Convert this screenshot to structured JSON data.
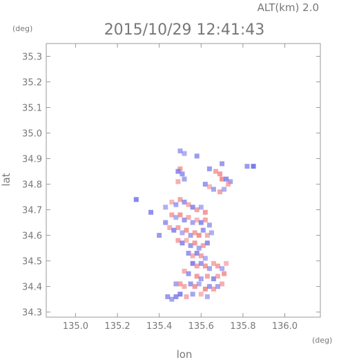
{
  "header": {
    "alt_label": "ALT(km) 2.0",
    "timestamp": "2015/10/29 12:41:43",
    "y_unit": "(deg)",
    "x_unit": "(deg)"
  },
  "chart_data": {
    "type": "heatmap",
    "xlabel": "lon",
    "ylabel": "lat",
    "xlim": [
      134.86,
      136.17
    ],
    "ylim": [
      34.28,
      35.35
    ],
    "x_ticks": [
      "135.0",
      "135.2",
      "135.4",
      "135.6",
      "135.8",
      "136.0"
    ],
    "y_ticks": [
      "34.3",
      "34.4",
      "34.5",
      "34.6",
      "34.7",
      "34.8",
      "34.9",
      "35.0",
      "35.1",
      "35.2",
      "35.3"
    ],
    "grid": false,
    "colors": {
      "positive": "#f08080",
      "negative": "#7070e8",
      "frame": "#999999"
    },
    "cells": [
      {
        "lon": 135.5,
        "lat": 34.93,
        "v": -0.4
      },
      {
        "lon": 135.52,
        "lat": 34.92,
        "v": -0.3
      },
      {
        "lon": 135.58,
        "lat": 34.91,
        "v": -0.5
      },
      {
        "lon": 135.5,
        "lat": 34.86,
        "v": 0.5
      },
      {
        "lon": 135.49,
        "lat": 34.85,
        "v": -0.6
      },
      {
        "lon": 135.51,
        "lat": 34.84,
        "v": -0.5
      },
      {
        "lon": 135.52,
        "lat": 34.82,
        "v": -0.4
      },
      {
        "lon": 135.49,
        "lat": 34.81,
        "v": 0.4
      },
      {
        "lon": 135.64,
        "lat": 34.86,
        "v": -0.5
      },
      {
        "lon": 135.67,
        "lat": 34.85,
        "v": 0.5
      },
      {
        "lon": 135.69,
        "lat": 34.84,
        "v": 0.6
      },
      {
        "lon": 135.7,
        "lat": 34.82,
        "v": 0.7
      },
      {
        "lon": 135.72,
        "lat": 34.82,
        "v": -0.6
      },
      {
        "lon": 135.74,
        "lat": 34.81,
        "v": -0.4
      },
      {
        "lon": 135.62,
        "lat": 34.8,
        "v": -0.5
      },
      {
        "lon": 135.64,
        "lat": 34.79,
        "v": 0.3
      },
      {
        "lon": 135.66,
        "lat": 34.78,
        "v": -0.4
      },
      {
        "lon": 135.69,
        "lat": 34.77,
        "v": 0.5
      },
      {
        "lon": 135.71,
        "lat": 34.78,
        "v": -0.3
      },
      {
        "lon": 135.73,
        "lat": 34.8,
        "v": 0.4
      },
      {
        "lon": 135.82,
        "lat": 34.87,
        "v": -0.5
      },
      {
        "lon": 135.85,
        "lat": 34.87,
        "v": -0.8
      },
      {
        "lon": 135.7,
        "lat": 34.88,
        "v": -0.5
      },
      {
        "lon": 135.29,
        "lat": 34.74,
        "v": -0.7
      },
      {
        "lon": 135.36,
        "lat": 34.69,
        "v": -0.6
      },
      {
        "lon": 135.43,
        "lat": 34.71,
        "v": -0.3
      },
      {
        "lon": 135.46,
        "lat": 34.73,
        "v": 0.3
      },
      {
        "lon": 135.48,
        "lat": 34.72,
        "v": -0.4
      },
      {
        "lon": 135.5,
        "lat": 34.74,
        "v": 0.5
      },
      {
        "lon": 135.52,
        "lat": 34.73,
        "v": -0.5
      },
      {
        "lon": 135.54,
        "lat": 34.72,
        "v": 0.4
      },
      {
        "lon": 135.56,
        "lat": 34.71,
        "v": -0.6
      },
      {
        "lon": 135.58,
        "lat": 34.7,
        "v": 0.5
      },
      {
        "lon": 135.6,
        "lat": 34.71,
        "v": -0.3
      },
      {
        "lon": 135.62,
        "lat": 34.69,
        "v": 0.6
      },
      {
        "lon": 135.46,
        "lat": 34.68,
        "v": 0.5
      },
      {
        "lon": 135.48,
        "lat": 34.67,
        "v": -0.3
      },
      {
        "lon": 135.5,
        "lat": 34.68,
        "v": 0.6
      },
      {
        "lon": 135.52,
        "lat": 34.66,
        "v": -0.5
      },
      {
        "lon": 135.54,
        "lat": 34.67,
        "v": 0.4
      },
      {
        "lon": 135.56,
        "lat": 34.65,
        "v": -0.4
      },
      {
        "lon": 135.58,
        "lat": 34.66,
        "v": 0.3
      },
      {
        "lon": 135.6,
        "lat": 34.65,
        "v": -0.6
      },
      {
        "lon": 135.62,
        "lat": 34.66,
        "v": 0.5
      },
      {
        "lon": 135.64,
        "lat": 34.64,
        "v": -0.4
      },
      {
        "lon": 135.43,
        "lat": 34.65,
        "v": -0.5
      },
      {
        "lon": 135.45,
        "lat": 34.63,
        "v": 0.4
      },
      {
        "lon": 135.47,
        "lat": 34.62,
        "v": -0.6
      },
      {
        "lon": 135.49,
        "lat": 34.63,
        "v": 0.5
      },
      {
        "lon": 135.51,
        "lat": 34.61,
        "v": -0.3
      },
      {
        "lon": 135.53,
        "lat": 34.62,
        "v": 0.6
      },
      {
        "lon": 135.55,
        "lat": 34.6,
        "v": -0.4
      },
      {
        "lon": 135.57,
        "lat": 34.61,
        "v": 0.5
      },
      {
        "lon": 135.59,
        "lat": 34.6,
        "v": 0.7
      },
      {
        "lon": 135.61,
        "lat": 34.62,
        "v": -0.5
      },
      {
        "lon": 135.63,
        "lat": 34.6,
        "v": 0.4
      },
      {
        "lon": 135.65,
        "lat": 34.61,
        "v": -0.3
      },
      {
        "lon": 135.4,
        "lat": 34.6,
        "v": -0.5
      },
      {
        "lon": 135.49,
        "lat": 34.58,
        "v": 0.5
      },
      {
        "lon": 135.51,
        "lat": 34.57,
        "v": -0.6
      },
      {
        "lon": 135.53,
        "lat": 34.58,
        "v": 0.3
      },
      {
        "lon": 135.55,
        "lat": 34.56,
        "v": -0.5
      },
      {
        "lon": 135.57,
        "lat": 34.57,
        "v": 0.6
      },
      {
        "lon": 135.59,
        "lat": 34.55,
        "v": -0.4
      },
      {
        "lon": 135.61,
        "lat": 34.56,
        "v": 0.5
      },
      {
        "lon": 135.63,
        "lat": 34.57,
        "v": -0.6
      },
      {
        "lon": 135.54,
        "lat": 34.53,
        "v": -0.5
      },
      {
        "lon": 135.56,
        "lat": 34.52,
        "v": 0.4
      },
      {
        "lon": 135.58,
        "lat": 34.53,
        "v": -0.6
      },
      {
        "lon": 135.6,
        "lat": 34.52,
        "v": 0.5
      },
      {
        "lon": 135.62,
        "lat": 34.51,
        "v": -0.3
      },
      {
        "lon": 135.56,
        "lat": 34.49,
        "v": -0.7
      },
      {
        "lon": 135.58,
        "lat": 34.48,
        "v": 0.5
      },
      {
        "lon": 135.6,
        "lat": 34.49,
        "v": -0.5
      },
      {
        "lon": 135.62,
        "lat": 34.48,
        "v": 0.6
      },
      {
        "lon": 135.64,
        "lat": 34.47,
        "v": -0.4
      },
      {
        "lon": 135.66,
        "lat": 34.49,
        "v": 0.4
      },
      {
        "lon": 135.68,
        "lat": 34.48,
        "v": 0.5
      },
      {
        "lon": 135.7,
        "lat": 34.47,
        "v": -0.3
      },
      {
        "lon": 135.72,
        "lat": 34.49,
        "v": 0.3
      },
      {
        "lon": 135.52,
        "lat": 34.46,
        "v": 0.4
      },
      {
        "lon": 135.54,
        "lat": 34.45,
        "v": -0.5
      },
      {
        "lon": 135.58,
        "lat": 34.44,
        "v": 0.6
      },
      {
        "lon": 135.6,
        "lat": 34.43,
        "v": -0.4
      },
      {
        "lon": 135.63,
        "lat": 34.44,
        "v": 0.5
      },
      {
        "lon": 135.66,
        "lat": 34.43,
        "v": -0.6
      },
      {
        "lon": 135.68,
        "lat": 34.44,
        "v": 0.4
      },
      {
        "lon": 135.71,
        "lat": 34.45,
        "v": 0.6
      },
      {
        "lon": 135.48,
        "lat": 34.41,
        "v": -0.4
      },
      {
        "lon": 135.5,
        "lat": 34.41,
        "v": 0.5
      },
      {
        "lon": 135.52,
        "lat": 34.4,
        "v": 0.4
      },
      {
        "lon": 135.55,
        "lat": 34.41,
        "v": -0.5
      },
      {
        "lon": 135.57,
        "lat": 34.4,
        "v": 0.6
      },
      {
        "lon": 135.59,
        "lat": 34.41,
        "v": -0.3
      },
      {
        "lon": 135.62,
        "lat": 34.39,
        "v": 0.7
      },
      {
        "lon": 135.64,
        "lat": 34.4,
        "v": -0.5
      },
      {
        "lon": 135.66,
        "lat": 34.39,
        "v": 0.5
      },
      {
        "lon": 135.68,
        "lat": 34.4,
        "v": -0.4
      },
      {
        "lon": 135.7,
        "lat": 34.41,
        "v": 0.4
      },
      {
        "lon": 135.44,
        "lat": 34.36,
        "v": -0.5
      },
      {
        "lon": 135.46,
        "lat": 34.35,
        "v": -0.4
      },
      {
        "lon": 135.48,
        "lat": 34.36,
        "v": -0.6
      },
      {
        "lon": 135.5,
        "lat": 34.37,
        "v": -0.7
      },
      {
        "lon": 135.53,
        "lat": 34.36,
        "v": 0.4
      },
      {
        "lon": 135.56,
        "lat": 34.37,
        "v": -0.4
      },
      {
        "lon": 135.6,
        "lat": 34.37,
        "v": 0.3
      },
      {
        "lon": 135.63,
        "lat": 34.36,
        "v": -0.3
      }
    ]
  }
}
